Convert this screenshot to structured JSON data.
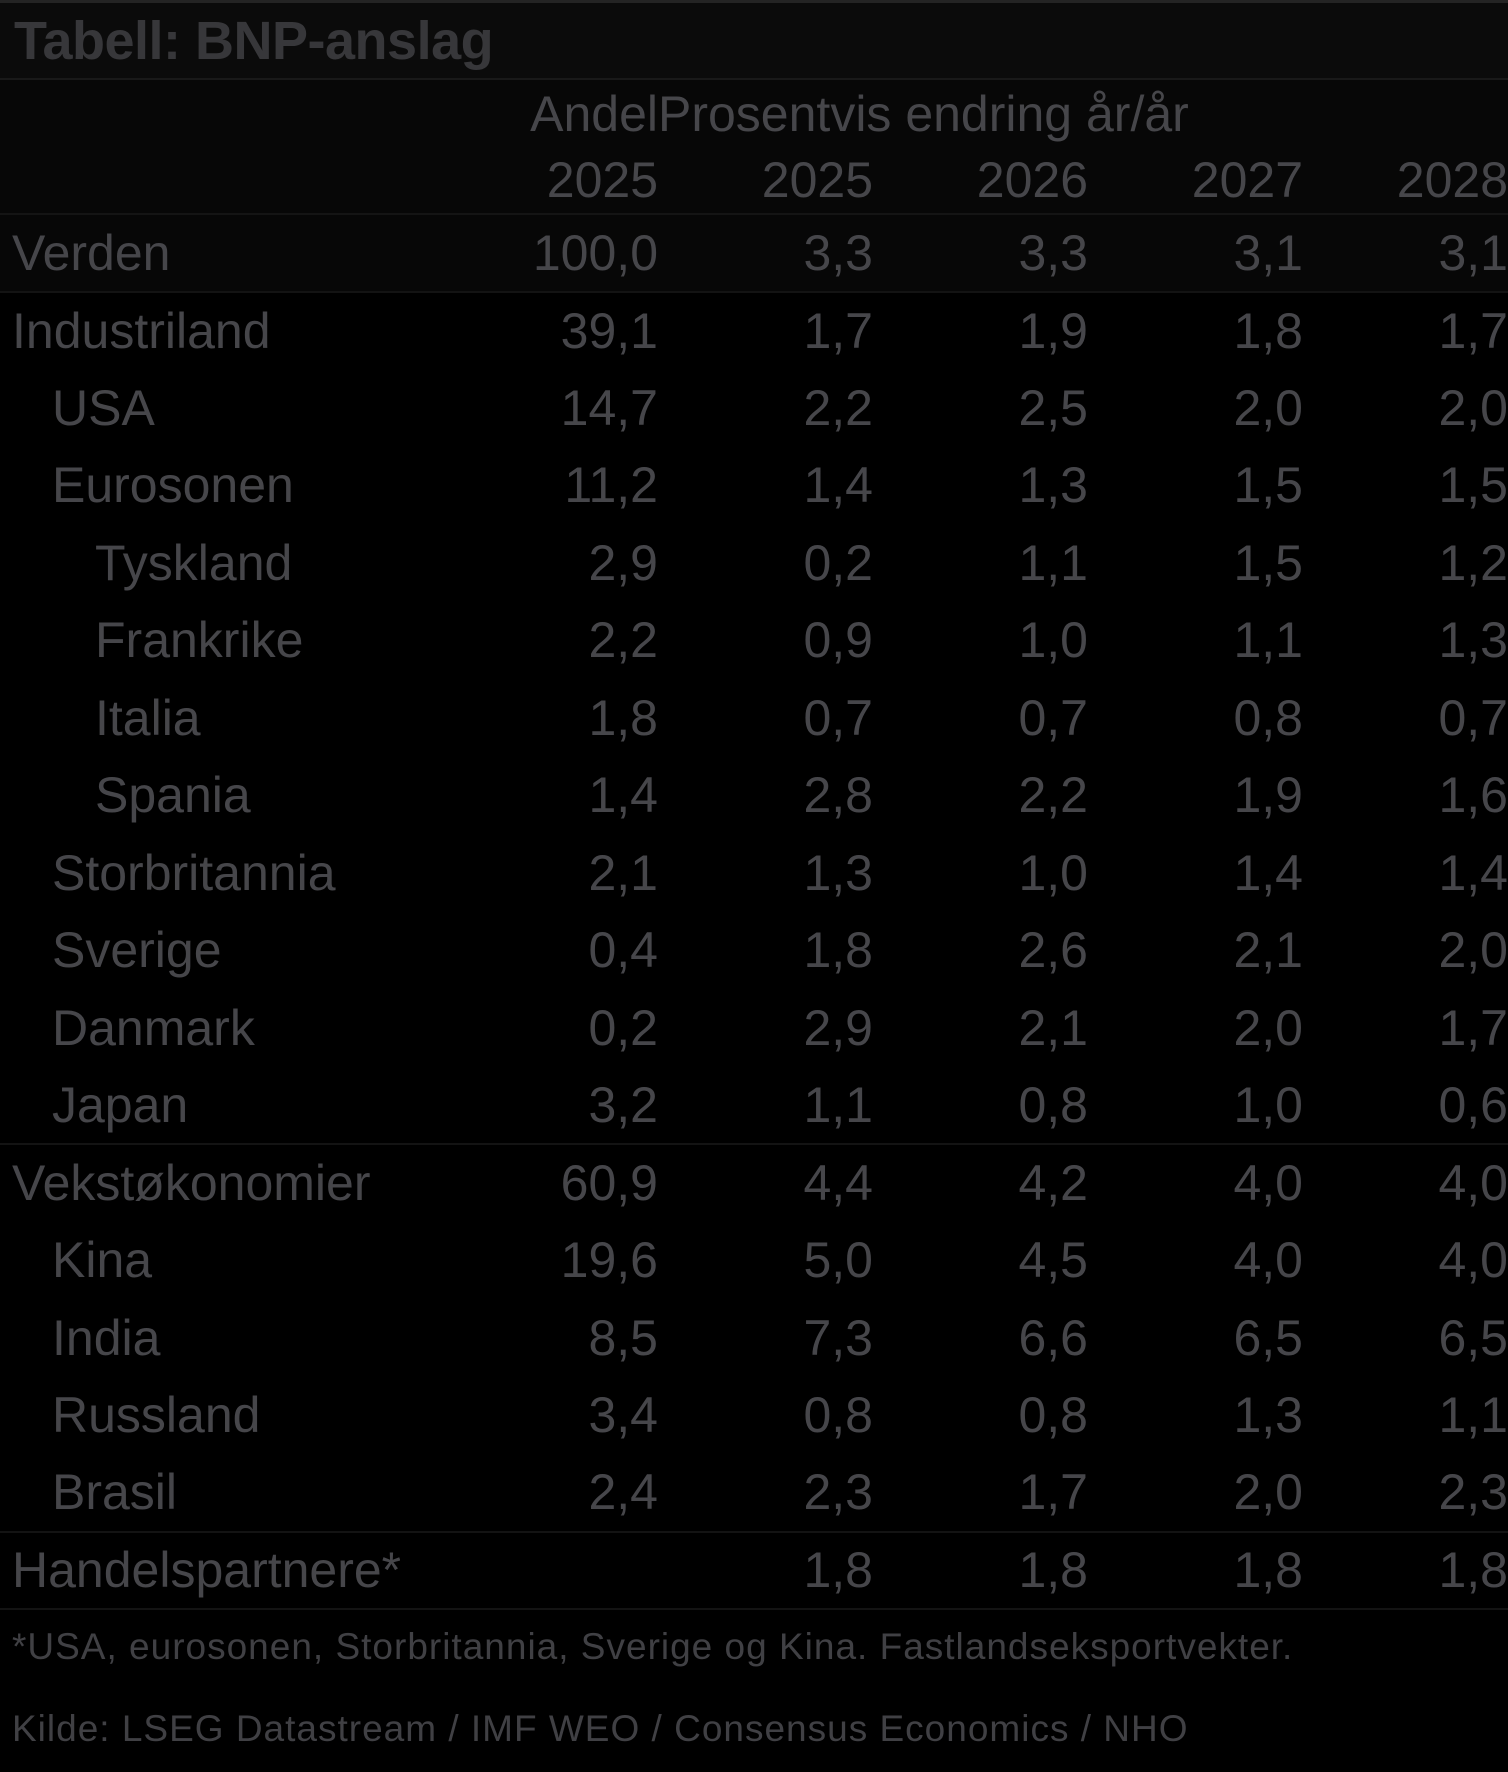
{
  "colors": {
    "background": "#000000",
    "title_text": "#37373a",
    "body_text": "#46464a",
    "footnote_text": "#404044"
  },
  "chart_data": {
    "type": "table",
    "title": "Tabell: BNP-anslag",
    "column_group_headers": {
      "andel": "Andel",
      "change": "Prosentvis endring år/år"
    },
    "columns": [
      "2025",
      "2025",
      "2026",
      "2027",
      "2028"
    ],
    "rows": [
      {
        "label": "Verden",
        "indent": 0,
        "values": [
          "100,0",
          "3,3",
          "3,3",
          "3,1",
          "3,1"
        ],
        "highlight": true,
        "divider_after": true
      },
      {
        "label": "Industriland",
        "indent": 0,
        "values": [
          "39,1",
          "1,7",
          "1,9",
          "1,8",
          "1,7"
        ],
        "highlight": false,
        "divider_after": false
      },
      {
        "label": "USA",
        "indent": 1,
        "values": [
          "14,7",
          "2,2",
          "2,5",
          "2,0",
          "2,0"
        ],
        "highlight": false,
        "divider_after": false
      },
      {
        "label": "Eurosonen",
        "indent": 1,
        "values": [
          "11,2",
          "1,4",
          "1,3",
          "1,5",
          "1,5"
        ],
        "highlight": false,
        "divider_after": false
      },
      {
        "label": "Tyskland",
        "indent": 2,
        "values": [
          "2,9",
          "0,2",
          "1,1",
          "1,5",
          "1,2"
        ],
        "highlight": false,
        "divider_after": false
      },
      {
        "label": "Frankrike",
        "indent": 2,
        "values": [
          "2,2",
          "0,9",
          "1,0",
          "1,1",
          "1,3"
        ],
        "highlight": false,
        "divider_after": false
      },
      {
        "label": "Italia",
        "indent": 2,
        "values": [
          "1,8",
          "0,7",
          "0,7",
          "0,8",
          "0,7"
        ],
        "highlight": false,
        "divider_after": false
      },
      {
        "label": "Spania",
        "indent": 2,
        "values": [
          "1,4",
          "2,8",
          "2,2",
          "1,9",
          "1,6"
        ],
        "highlight": false,
        "divider_after": false
      },
      {
        "label": "Storbritannia",
        "indent": 1,
        "values": [
          "2,1",
          "1,3",
          "1,0",
          "1,4",
          "1,4"
        ],
        "highlight": false,
        "divider_after": false
      },
      {
        "label": "Sverige",
        "indent": 1,
        "values": [
          "0,4",
          "1,8",
          "2,6",
          "2,1",
          "2,0"
        ],
        "highlight": false,
        "divider_after": false
      },
      {
        "label": "Danmark",
        "indent": 1,
        "values": [
          "0,2",
          "2,9",
          "2,1",
          "2,0",
          "1,7"
        ],
        "highlight": false,
        "divider_after": false
      },
      {
        "label": "Japan",
        "indent": 1,
        "values": [
          "3,2",
          "1,1",
          "0,8",
          "1,0",
          "0,6"
        ],
        "highlight": false,
        "divider_after": true
      },
      {
        "label": "Vekstøkonomier",
        "indent": 0,
        "values": [
          "60,9",
          "4,4",
          "4,2",
          "4,0",
          "4,0"
        ],
        "highlight": false,
        "divider_after": false
      },
      {
        "label": "Kina",
        "indent": 1,
        "values": [
          "19,6",
          "5,0",
          "4,5",
          "4,0",
          "4,0"
        ],
        "highlight": false,
        "divider_after": false
      },
      {
        "label": "India",
        "indent": 1,
        "values": [
          "8,5",
          "7,3",
          "6,6",
          "6,5",
          "6,5"
        ],
        "highlight": false,
        "divider_after": false
      },
      {
        "label": "Russland",
        "indent": 1,
        "values": [
          "3,4",
          "0,8",
          "0,8",
          "1,3",
          "1,1"
        ],
        "highlight": false,
        "divider_after": false
      },
      {
        "label": "Brasil",
        "indent": 1,
        "values": [
          "2,4",
          "2,3",
          "1,7",
          "2,0",
          "2,3"
        ],
        "highlight": false,
        "divider_after": true
      },
      {
        "label": "Handelspartnere*",
        "indent": 0,
        "values": [
          "",
          "1,8",
          "1,8",
          "1,8",
          "1,8"
        ],
        "highlight": false,
        "divider_after": true
      }
    ],
    "footnote": "*USA, eurosonen, Storbritannia, Sverige og Kina. Fastlandseksportvekter.",
    "source": "Kilde: LSEG Datastream / IMF WEO / Consensus Economics / NHO"
  }
}
